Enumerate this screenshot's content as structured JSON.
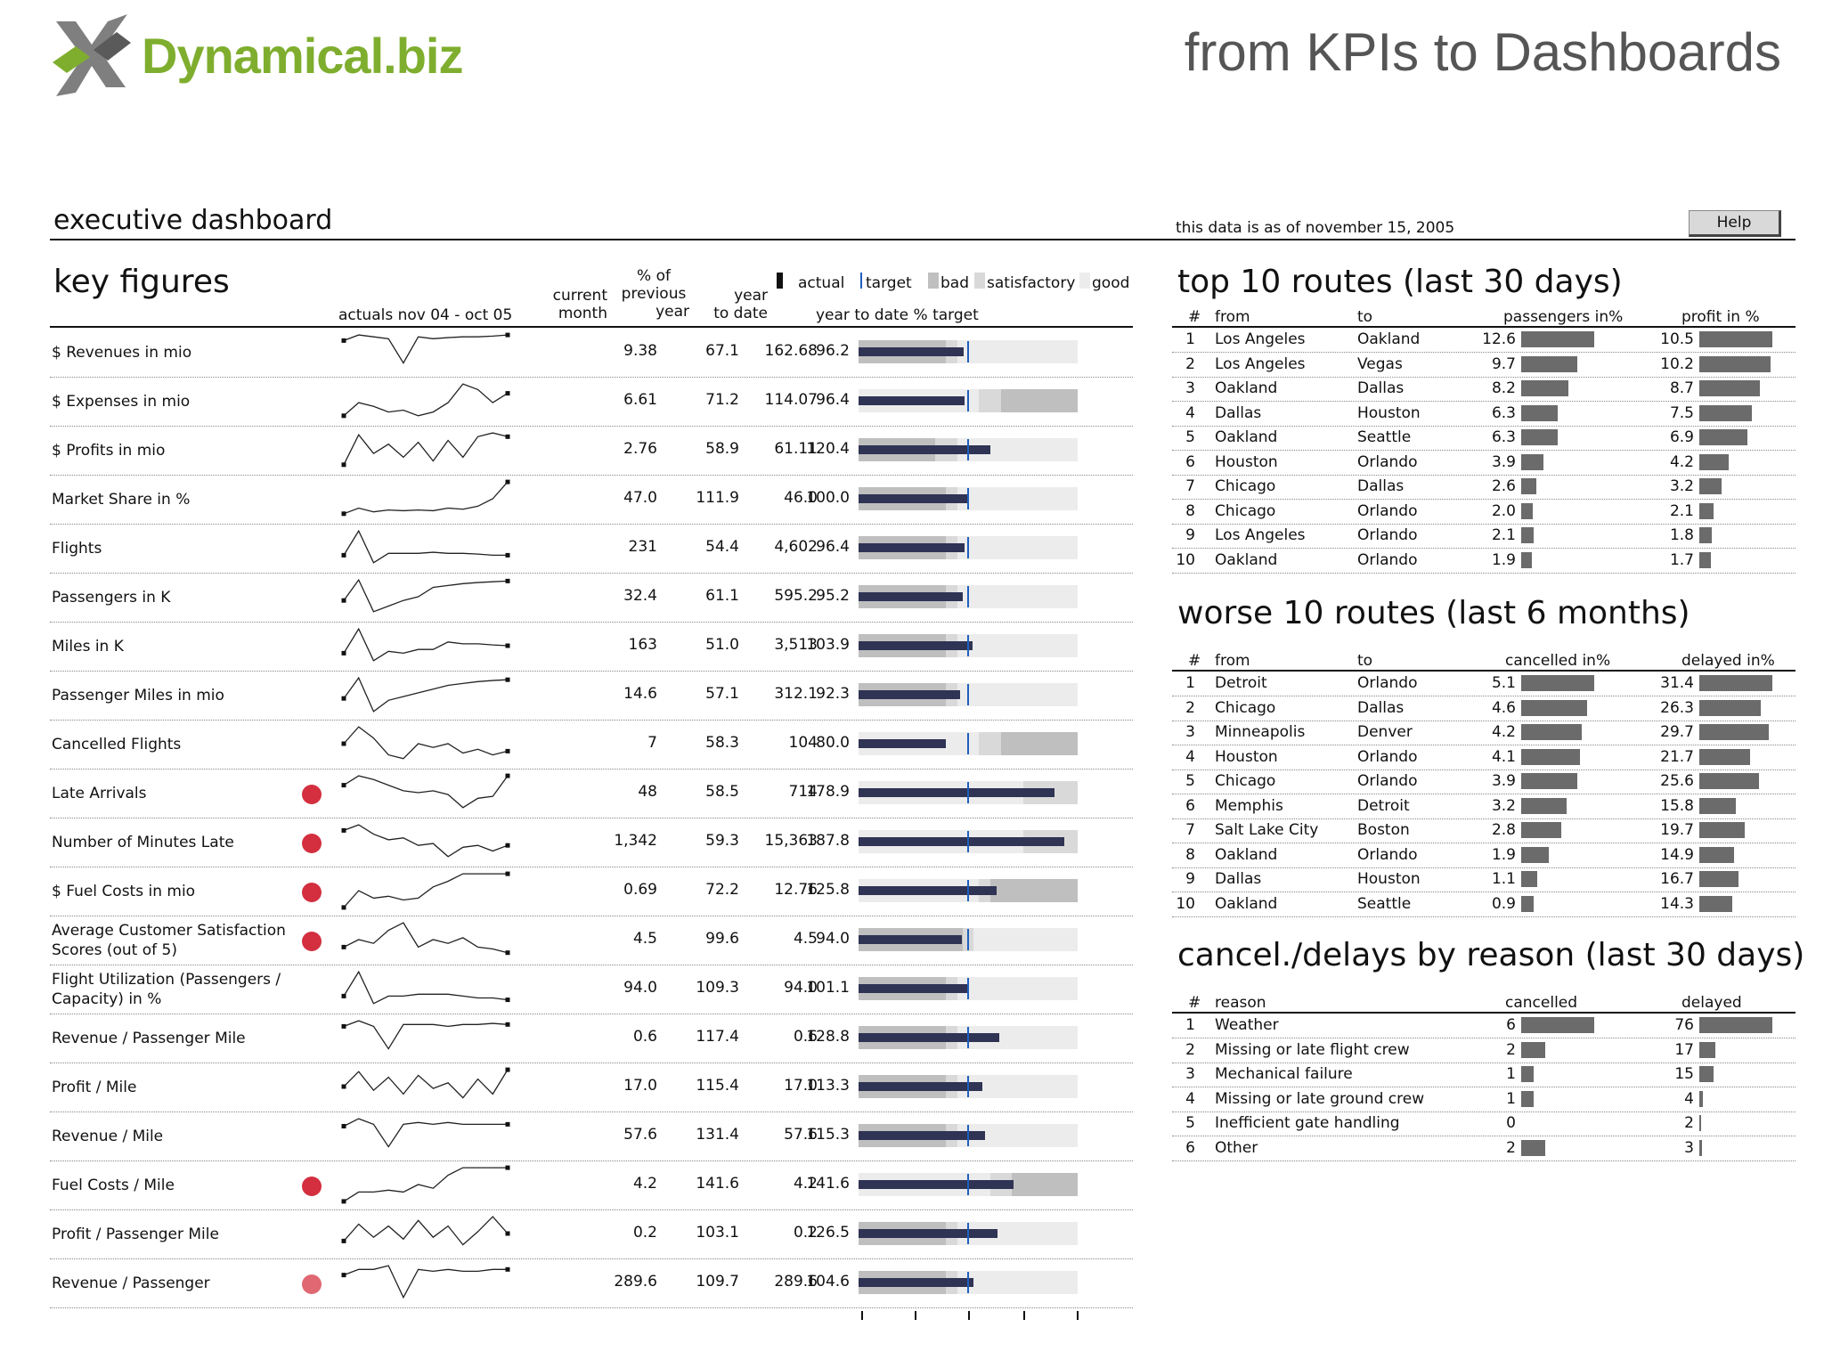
{
  "brand": {
    "logo_text": "Dynamical.biz",
    "tagline": "from KPIs to Dashboards"
  },
  "header": {
    "title": "executive dashboard",
    "data_date": "this data is as of november 15, 2005",
    "help_label": "Help"
  },
  "colors": {
    "bar": "#2f3354",
    "target": "#1f5fbf",
    "bad": "#bfbfbf",
    "satisfactory": "#d9d9d9",
    "good": "#ececec",
    "alert": "#d32f3f",
    "alert_light": "#e06872",
    "route_bar": "#6b6b6b",
    "logo_green": "#7fae2f"
  },
  "key_figures": {
    "title": "key figures",
    "headers": {
      "sparkline": "actuals nov 04   -   oct 05",
      "current_line1": "current",
      "current_line2": "month",
      "prev_line1": "% of",
      "prev_line2": "previous",
      "prev_line3": "year",
      "ytd_line1": "year",
      "ytd_line2": "to date",
      "ytd_target": "year to date % target"
    },
    "legend": {
      "actual": "actual",
      "target": "target",
      "bad": "bad",
      "satisfactory": "satisfactory",
      "good": "good"
    },
    "rows": [
      {
        "label": "$ Revenues in mio",
        "alert": "none",
        "current": "9.38",
        "prev": "67.1",
        "ytd": "162.68",
        "pct": "96.2",
        "actual": 96.2,
        "target": 100,
        "bad": 80,
        "satisfactory": 90,
        "max": 200,
        "spark": [
          0.8,
          0.95,
          0.9,
          0.85,
          0.2,
          0.9,
          0.85,
          0.88,
          0.9,
          0.9,
          0.92,
          0.95
        ]
      },
      {
        "label": "$ Expenses in mio",
        "alert": "none",
        "current": "6.61",
        "prev": "71.2",
        "ytd": "114.07",
        "pct": "96.4",
        "actual": 96.4,
        "target": 100,
        "bad": 130,
        "satisfactory": 110,
        "max": 200,
        "spark": [
          0.1,
          0.45,
          0.35,
          0.2,
          0.25,
          0.1,
          0.2,
          0.45,
          0.95,
          0.8,
          0.45,
          0.7
        ]
      },
      {
        "label": "$ Profits in mio",
        "alert": "none",
        "current": "2.76",
        "prev": "58.9",
        "ytd": "61.11",
        "pct": "120.4",
        "actual": 120.4,
        "target": 100,
        "bad": 70,
        "satisfactory": 90,
        "max": 200,
        "spark": [
          0.1,
          0.9,
          0.4,
          0.65,
          0.3,
          0.7,
          0.2,
          0.75,
          0.3,
          0.85,
          0.95,
          0.85
        ]
      },
      {
        "label": "Market Share in %",
        "alert": "none",
        "current": "47.0",
        "prev": "111.9",
        "ytd": "46.0",
        "pct": "100.0",
        "actual": 100,
        "target": 100,
        "bad": 80,
        "satisfactory": 90,
        "max": 200,
        "spark": [
          0.1,
          0.25,
          0.15,
          0.2,
          0.18,
          0.2,
          0.18,
          0.25,
          0.22,
          0.3,
          0.5,
          0.95
        ]
      },
      {
        "label": "Flights",
        "alert": "none",
        "current": "231",
        "prev": "54.4",
        "ytd": "4,602",
        "pct": "96.4",
        "actual": 96.4,
        "target": 100,
        "bad": 80,
        "satisfactory": 90,
        "max": 200,
        "spark": [
          0.3,
          0.95,
          0.1,
          0.35,
          0.35,
          0.35,
          0.38,
          0.35,
          0.35,
          0.33,
          0.3,
          0.3
        ]
      },
      {
        "label": "Passengers in K",
        "alert": "none",
        "current": "32.4",
        "prev": "61.1",
        "ytd": "595.2",
        "pct": "95.2",
        "actual": 95.2,
        "target": 100,
        "bad": 80,
        "satisfactory": 90,
        "max": 200,
        "spark": [
          0.4,
          0.95,
          0.1,
          0.25,
          0.4,
          0.5,
          0.75,
          0.8,
          0.85,
          0.88,
          0.9,
          0.92
        ]
      },
      {
        "label": "Miles in K",
        "alert": "none",
        "current": "163",
        "prev": "51.0",
        "ytd": "3,513",
        "pct": "103.9",
        "actual": 103.9,
        "target": 100,
        "bad": 80,
        "satisfactory": 90,
        "max": 200,
        "spark": [
          0.3,
          0.95,
          0.1,
          0.35,
          0.3,
          0.4,
          0.4,
          0.6,
          0.55,
          0.55,
          0.52,
          0.5
        ]
      },
      {
        "label": "Passenger Miles in mio",
        "alert": "none",
        "current": "14.6",
        "prev": "57.1",
        "ytd": "312.1",
        "pct": "92.3",
        "actual": 92.3,
        "target": 100,
        "bad": 80,
        "satisfactory": 90,
        "max": 200,
        "spark": [
          0.4,
          0.95,
          0.05,
          0.35,
          0.45,
          0.55,
          0.65,
          0.75,
          0.8,
          0.85,
          0.88,
          0.9
        ]
      },
      {
        "label": "Cancelled Flights",
        "alert": "none",
        "current": "7",
        "prev": "58.3",
        "ytd": "104",
        "pct": "80.0",
        "actual": 80,
        "target": 100,
        "bad": 130,
        "satisfactory": 110,
        "max": 200,
        "spark": [
          0.5,
          0.95,
          0.65,
          0.2,
          0.1,
          0.5,
          0.4,
          0.5,
          0.25,
          0.35,
          0.2,
          0.3
        ]
      },
      {
        "label": "Late Arrivals",
        "alert": "red",
        "current": "48",
        "prev": "58.5",
        "ytd": "714",
        "pct": "178.9",
        "actual": 178.9,
        "target": 100,
        "bad": 200,
        "satisfactory": 150,
        "max": 200,
        "spark": [
          0.7,
          0.95,
          0.85,
          0.7,
          0.55,
          0.5,
          0.55,
          0.45,
          0.1,
          0.35,
          0.4,
          0.95
        ]
      },
      {
        "label": "Number of Minutes Late",
        "alert": "red",
        "current": "1,342",
        "prev": "59.3",
        "ytd": "15,363",
        "pct": "187.8",
        "actual": 187.8,
        "target": 100,
        "bad": 200,
        "satisfactory": 150,
        "max": 200,
        "spark": [
          0.8,
          0.95,
          0.7,
          0.55,
          0.6,
          0.4,
          0.45,
          0.1,
          0.35,
          0.4,
          0.25,
          0.4
        ]
      },
      {
        "label": "$ Fuel Costs in mio",
        "alert": "red",
        "current": "0.69",
        "prev": "72.2",
        "ytd": "12.76",
        "pct": "125.8",
        "actual": 125.8,
        "target": 100,
        "bad": 120,
        "satisfactory": 110,
        "max": 200,
        "spark": [
          0.05,
          0.5,
          0.3,
          0.35,
          0.25,
          0.3,
          0.6,
          0.75,
          0.95,
          0.95,
          0.95,
          0.95
        ]
      },
      {
        "label": "Average Customer Satisfaction Scores (out of 5)",
        "alert": "red",
        "current": "4.5",
        "prev": "99.6",
        "ytd": "4.5",
        "pct": "94.0",
        "actual": 94,
        "target": 100,
        "bad": 95,
        "satisfactory": 105,
        "max": 200,
        "spark": [
          0.3,
          0.5,
          0.4,
          0.75,
          0.95,
          0.3,
          0.5,
          0.4,
          0.55,
          0.3,
          0.25,
          0.15
        ]
      },
      {
        "label": "Flight Utilization (Passengers / Capacity) in %",
        "alert": "none",
        "current": "94.0",
        "prev": "109.3",
        "ytd": "94.0",
        "pct": "101.1",
        "actual": 101.1,
        "target": 100,
        "bad": 80,
        "satisfactory": 90,
        "max": 200,
        "spark": [
          0.3,
          0.95,
          0.1,
          0.3,
          0.3,
          0.35,
          0.35,
          0.35,
          0.3,
          0.25,
          0.25,
          0.2
        ]
      },
      {
        "label": "Revenue / Passenger Mile",
        "alert": "none",
        "current": "0.6",
        "prev": "117.4",
        "ytd": "0.6",
        "pct": "128.8",
        "actual": 128.8,
        "target": 100,
        "bad": 80,
        "satisfactory": 90,
        "max": 200,
        "spark": [
          0.8,
          0.95,
          0.8,
          0.2,
          0.85,
          0.85,
          0.85,
          0.8,
          0.85,
          0.85,
          0.88,
          0.85
        ]
      },
      {
        "label": "Profit / Mile",
        "alert": "none",
        "current": "17.0",
        "prev": "115.4",
        "ytd": "17.0",
        "pct": "113.3",
        "actual": 113.3,
        "target": 100,
        "bad": 80,
        "satisfactory": 90,
        "max": 200,
        "spark": [
          0.5,
          0.9,
          0.4,
          0.75,
          0.3,
          0.8,
          0.45,
          0.6,
          0.2,
          0.7,
          0.3,
          0.95
        ]
      },
      {
        "label": "Revenue / Mile",
        "alert": "none",
        "current": "57.6",
        "prev": "131.4",
        "ytd": "57.6",
        "pct": "115.3",
        "actual": 115.3,
        "target": 100,
        "bad": 80,
        "satisfactory": 90,
        "max": 200,
        "spark": [
          0.75,
          0.95,
          0.8,
          0.2,
          0.8,
          0.85,
          0.8,
          0.85,
          0.8,
          0.8,
          0.8,
          0.8
        ]
      },
      {
        "label": "Fuel Costs / Mile",
        "alert": "red",
        "current": "4.2",
        "prev": "141.6",
        "ytd": "4.2",
        "pct": "141.6",
        "actual": 141.6,
        "target": 100,
        "bad": 140,
        "satisfactory": 120,
        "max": 200,
        "spark": [
          0.05,
          0.3,
          0.3,
          0.35,
          0.3,
          0.5,
          0.4,
          0.75,
          0.95,
          0.95,
          0.95,
          0.95
        ]
      },
      {
        "label": "Profit / Passenger Mile",
        "alert": "none",
        "current": "0.2",
        "prev": "103.1",
        "ytd": "0.2",
        "pct": "126.5",
        "actual": 126.5,
        "target": 100,
        "bad": 80,
        "satisfactory": 90,
        "max": 200,
        "spark": [
          0.3,
          0.75,
          0.4,
          0.7,
          0.35,
          0.85,
          0.4,
          0.7,
          0.2,
          0.55,
          0.95,
          0.5
        ]
      },
      {
        "label": "Revenue / Passenger",
        "alert": "light",
        "current": "289.6",
        "prev": "109.7",
        "ytd": "289.6",
        "pct": "104.6",
        "actual": 104.6,
        "target": 100,
        "bad": 80,
        "satisfactory": 90,
        "max": 200,
        "spark": [
          0.7,
          0.85,
          0.85,
          0.95,
          0.1,
          0.85,
          0.8,
          0.85,
          0.8,
          0.8,
          0.85,
          0.85
        ]
      }
    ]
  },
  "top_routes": {
    "title": "top 10 routes (last 30 days)",
    "headers": {
      "num": "#",
      "from": "from",
      "to": "to",
      "col1": "passengers in%",
      "col2": "profit in %"
    },
    "max1": 12.6,
    "max2": 10.5,
    "rows": [
      {
        "n": "1",
        "from": "Los Angeles",
        "to": "Oakland",
        "v1": 12.6,
        "v2": 10.5,
        "s1": "12.6",
        "s2": "10.5"
      },
      {
        "n": "2",
        "from": "Los Angeles",
        "to": "Vegas",
        "v1": 9.7,
        "v2": 10.2,
        "s1": "9.7",
        "s2": "10.2"
      },
      {
        "n": "3",
        "from": "Oakland",
        "to": "Dallas",
        "v1": 8.2,
        "v2": 8.7,
        "s1": "8.2",
        "s2": "8.7"
      },
      {
        "n": "4",
        "from": "Dallas",
        "to": "Houston",
        "v1": 6.3,
        "v2": 7.5,
        "s1": "6.3",
        "s2": "7.5"
      },
      {
        "n": "5",
        "from": "Oakland",
        "to": "Seattle",
        "v1": 6.3,
        "v2": 6.9,
        "s1": "6.3",
        "s2": "6.9"
      },
      {
        "n": "6",
        "from": "Houston",
        "to": "Orlando",
        "v1": 3.9,
        "v2": 4.2,
        "s1": "3.9",
        "s2": "4.2"
      },
      {
        "n": "7",
        "from": "Chicago",
        "to": "Dallas",
        "v1": 2.6,
        "v2": 3.2,
        "s1": "2.6",
        "s2": "3.2"
      },
      {
        "n": "8",
        "from": "Chicago",
        "to": "Orlando",
        "v1": 2.0,
        "v2": 2.1,
        "s1": "2.0",
        "s2": "2.1"
      },
      {
        "n": "9",
        "from": "Los Angeles",
        "to": "Orlando",
        "v1": 2.1,
        "v2": 1.8,
        "s1": "2.1",
        "s2": "1.8"
      },
      {
        "n": "10",
        "from": "Oakland",
        "to": "Orlando",
        "v1": 1.9,
        "v2": 1.7,
        "s1": "1.9",
        "s2": "1.7"
      }
    ]
  },
  "worse_routes": {
    "title": "worse 10 routes (last 6 months)",
    "headers": {
      "num": "#",
      "from": "from",
      "to": "to",
      "col1": "cancelled in%",
      "col2": "delayed in%"
    },
    "max1": 5.1,
    "max2": 31.4,
    "rows": [
      {
        "n": "1",
        "from": "Detroit",
        "to": "Orlando",
        "v1": 5.1,
        "v2": 31.4,
        "s1": "5.1",
        "s2": "31.4"
      },
      {
        "n": "2",
        "from": "Chicago",
        "to": "Dallas",
        "v1": 4.6,
        "v2": 26.3,
        "s1": "4.6",
        "s2": "26.3"
      },
      {
        "n": "3",
        "from": "Minneapolis",
        "to": "Denver",
        "v1": 4.2,
        "v2": 29.7,
        "s1": "4.2",
        "s2": "29.7"
      },
      {
        "n": "4",
        "from": "Houston",
        "to": "Orlando",
        "v1": 4.1,
        "v2": 21.7,
        "s1": "4.1",
        "s2": "21.7"
      },
      {
        "n": "5",
        "from": "Chicago",
        "to": "Orlando",
        "v1": 3.9,
        "v2": 25.6,
        "s1": "3.9",
        "s2": "25.6"
      },
      {
        "n": "6",
        "from": "Memphis",
        "to": "Detroit",
        "v1": 3.2,
        "v2": 15.8,
        "s1": "3.2",
        "s2": "15.8"
      },
      {
        "n": "7",
        "from": "Salt Lake City",
        "to": "Boston",
        "v1": 2.8,
        "v2": 19.7,
        "s1": "2.8",
        "s2": "19.7"
      },
      {
        "n": "8",
        "from": "Oakland",
        "to": "Orlando",
        "v1": 1.9,
        "v2": 14.9,
        "s1": "1.9",
        "s2": "14.9"
      },
      {
        "n": "9",
        "from": "Dallas",
        "to": "Houston",
        "v1": 1.1,
        "v2": 16.7,
        "s1": "1.1",
        "s2": "16.7"
      },
      {
        "n": "10",
        "from": "Oakland",
        "to": "Seattle",
        "v1": 0.9,
        "v2": 14.3,
        "s1": "0.9",
        "s2": "14.3"
      }
    ]
  },
  "reasons": {
    "title": "cancel./delays by reason (last 30 days)",
    "headers": {
      "num": "#",
      "reason": "reason",
      "col1": "cancelled",
      "col2": "delayed"
    },
    "max1": 6,
    "max2": 76,
    "rows": [
      {
        "n": "1",
        "reason": "Weather",
        "v1": 6,
        "v2": 76,
        "s1": "6",
        "s2": "76"
      },
      {
        "n": "2",
        "reason": "Missing or late flight crew",
        "v1": 2,
        "v2": 17,
        "s1": "2",
        "s2": "17"
      },
      {
        "n": "3",
        "reason": "Mechanical failure",
        "v1": 1,
        "v2": 15,
        "s1": "1",
        "s2": "15"
      },
      {
        "n": "4",
        "reason": "Missing or late ground crew",
        "v1": 1,
        "v2": 4,
        "s1": "1",
        "s2": "4"
      },
      {
        "n": "5",
        "reason": "Inefficient gate handling",
        "v1": 0,
        "v2": 2,
        "s1": "0",
        "s2": "2"
      },
      {
        "n": "6",
        "reason": "Other",
        "v1": 2,
        "v2": 3,
        "s1": "2",
        "s2": "3"
      }
    ]
  }
}
